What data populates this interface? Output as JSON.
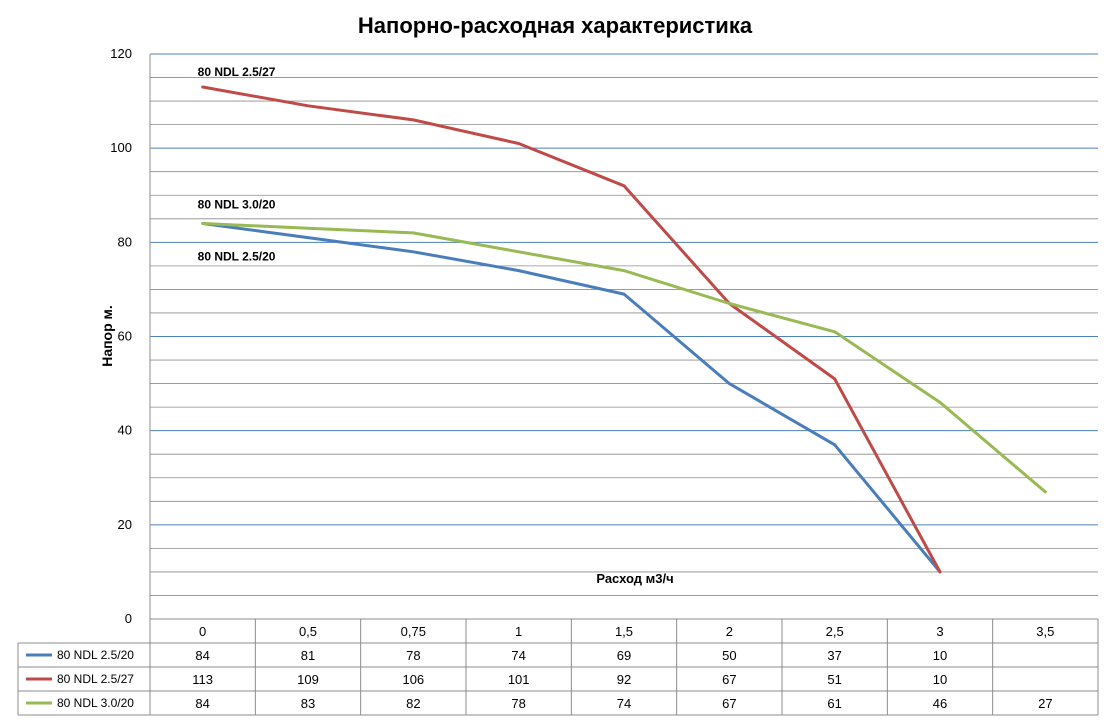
{
  "chart_data": {
    "type": "line",
    "title": "Напорно-расходная характеристика",
    "xlabel": "Расход м3/ч",
    "ylabel": "Напор м.",
    "ylim": [
      0,
      120
    ],
    "y_ticks": [
      0,
      20,
      40,
      60,
      80,
      100,
      120
    ],
    "grid": true,
    "categories": [
      "0",
      "0,5",
      "0,75",
      "1",
      "1,5",
      "2",
      "2,5",
      "3",
      "3,5"
    ],
    "series": [
      {
        "name": "80 NDL 2.5/20",
        "color": "#4A7EBB",
        "values": [
          84,
          81,
          78,
          74,
          69,
          50,
          37,
          10,
          null
        ]
      },
      {
        "name": "80 NDL 2.5/27",
        "color": "#BE4B48",
        "values": [
          113,
          109,
          106,
          101,
          92,
          67,
          51,
          10,
          null
        ]
      },
      {
        "name": "80 NDL 3.0/20",
        "color": "#98B954",
        "values": [
          84,
          83,
          82,
          78,
          74,
          67,
          61,
          46,
          27
        ]
      }
    ],
    "annotations": [
      {
        "text": "80 NDL 2.5/27",
        "series": 1
      },
      {
        "text": "80 NDL 3.0/20",
        "series": 2
      },
      {
        "text": "80 NDL 2.5/20",
        "series": 0
      }
    ],
    "data_table": true
  }
}
